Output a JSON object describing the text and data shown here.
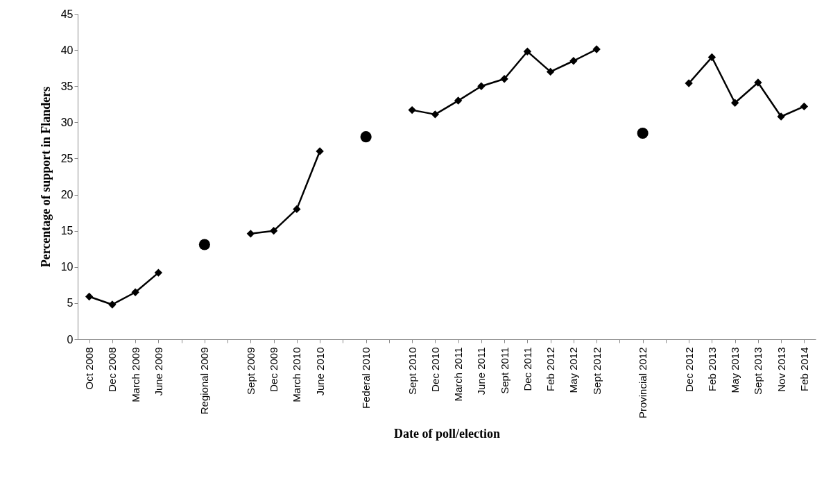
{
  "chart_data": {
    "type": "line",
    "xlabel": "Date of poll/election",
    "ylabel": "Percentage of support in Flanders",
    "categories": [
      "Oct 2008",
      "Dec 2008",
      "March 2009",
      "June 2009",
      null,
      "Regional 2009",
      null,
      "Sept 2009",
      "Dec 2009",
      "March 2010",
      "June 2010",
      null,
      "Federal 2010",
      null,
      "Sept 2010",
      "Dec 2010",
      "March 2011",
      "June 2011",
      "Sept 2011",
      "Dec 2011",
      "Feb 2012",
      "May 2012",
      "Sept 2012",
      null,
      "Provincial 2012",
      null,
      "Dec 2012",
      "Feb 2013",
      "May 2013",
      "Sept 2013",
      "Nov 2013",
      "Feb 2014"
    ],
    "series": [
      {
        "marker": "diamond",
        "color": "#000000",
        "values": [
          5.9,
          4.8,
          6.5,
          9.2,
          null,
          null,
          null,
          14.6,
          15.0,
          18.0,
          26.0,
          null,
          null,
          null,
          31.7,
          31.1,
          33.0,
          35.0,
          36.0,
          39.8,
          37.0,
          38.5,
          40.1,
          null,
          null,
          null,
          35.4,
          39.0,
          32.7,
          35.5,
          30.8,
          32.2
        ]
      },
      {
        "type": "scatter",
        "marker": "circle",
        "color": "#000000",
        "values": [
          null,
          null,
          null,
          null,
          null,
          13.1,
          null,
          null,
          null,
          null,
          null,
          null,
          28.0,
          null,
          null,
          null,
          null,
          null,
          null,
          null,
          null,
          null,
          null,
          null,
          28.5,
          null,
          null,
          null,
          null,
          null,
          null,
          null
        ]
      }
    ],
    "ylim": [
      0,
      45
    ],
    "yticks": [
      0,
      5,
      10,
      15,
      20,
      25,
      30,
      35,
      40,
      45
    ]
  }
}
